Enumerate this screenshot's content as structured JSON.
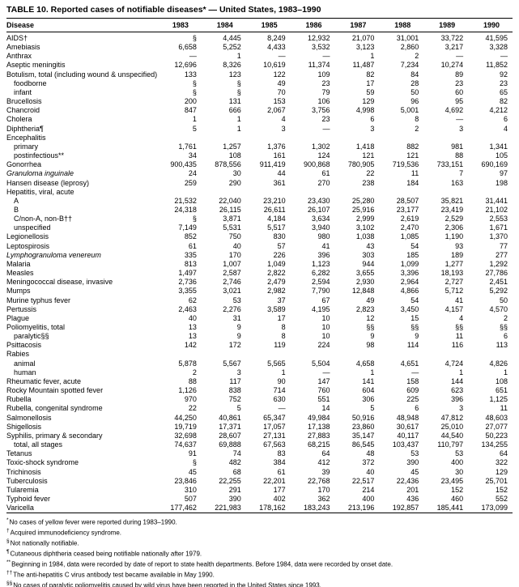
{
  "table": {
    "title": "TABLE 10. Reported cases of notifiable diseases* — United States, 1983–1990",
    "columns": [
      "Disease",
      "1983",
      "1984",
      "1985",
      "1986",
      "1987",
      "1988",
      "1989",
      "1990"
    ],
    "rows": [
      {
        "label": "AIDS†",
        "indent": 0,
        "italic": false,
        "values": [
          "§",
          "4,445",
          "8,249",
          "12,932",
          "21,070",
          "31,001",
          "33,722",
          "41,595"
        ]
      },
      {
        "label": "Amebiasis",
        "indent": 0,
        "italic": false,
        "values": [
          "6,658",
          "5,252",
          "4,433",
          "3,532",
          "3,123",
          "2,860",
          "3,217",
          "3,328"
        ]
      },
      {
        "label": "Anthrax",
        "indent": 0,
        "italic": false,
        "values": [
          "—",
          "1",
          "—",
          "—",
          "1",
          "2",
          "—",
          "—"
        ]
      },
      {
        "label": "Aseptic meningitis",
        "indent": 0,
        "italic": false,
        "values": [
          "12,696",
          "8,326",
          "10,619",
          "11,374",
          "11,487",
          "7,234",
          "10,274",
          "11,852"
        ]
      },
      {
        "label": "Botulism, total (including wound & unspecified)",
        "indent": 0,
        "italic": false,
        "values": [
          "133",
          "123",
          "122",
          "109",
          "82",
          "84",
          "89",
          "92"
        ]
      },
      {
        "label": "foodborne",
        "indent": 1,
        "italic": false,
        "values": [
          "§",
          "§",
          "49",
          "23",
          "17",
          "28",
          "23",
          "23"
        ]
      },
      {
        "label": "infant",
        "indent": 1,
        "italic": false,
        "values": [
          "§",
          "§",
          "70",
          "79",
          "59",
          "50",
          "60",
          "65"
        ]
      },
      {
        "label": "Brucellosis",
        "indent": 0,
        "italic": false,
        "values": [
          "200",
          "131",
          "153",
          "106",
          "129",
          "96",
          "95",
          "82"
        ]
      },
      {
        "label": "Chancroid",
        "indent": 0,
        "italic": false,
        "values": [
          "847",
          "666",
          "2,067",
          "3,756",
          "4,998",
          "5,001",
          "4,692",
          "4,212"
        ]
      },
      {
        "label": "Cholera",
        "indent": 0,
        "italic": false,
        "values": [
          "1",
          "1",
          "4",
          "23",
          "6",
          "8",
          "—",
          "6"
        ]
      },
      {
        "label": "Diphtheria¶",
        "indent": 0,
        "italic": false,
        "values": [
          "5",
          "1",
          "3",
          "—",
          "3",
          "2",
          "3",
          "4"
        ]
      },
      {
        "label": "Encephalitis",
        "indent": 0,
        "italic": false,
        "values": []
      },
      {
        "label": "primary",
        "indent": 1,
        "italic": false,
        "values": [
          "1,761",
          "1,257",
          "1,376",
          "1,302",
          "1,418",
          "882",
          "981",
          "1,341"
        ]
      },
      {
        "label": "postinfectious**",
        "indent": 1,
        "italic": false,
        "values": [
          "34",
          "108",
          "161",
          "124",
          "121",
          "121",
          "88",
          "105"
        ]
      },
      {
        "label": "Gonorrhea",
        "indent": 0,
        "italic": false,
        "values": [
          "900,435",
          "878,556",
          "911,419",
          "900,868",
          "780,905",
          "719,536",
          "733,151",
          "690,169"
        ]
      },
      {
        "label": "Granuloma inguinale",
        "indent": 0,
        "italic": true,
        "values": [
          "24",
          "30",
          "44",
          "61",
          "22",
          "11",
          "7",
          "97"
        ]
      },
      {
        "label": "Hansen disease (leprosy)",
        "indent": 0,
        "italic": false,
        "values": [
          "259",
          "290",
          "361",
          "270",
          "238",
          "184",
          "163",
          "198"
        ]
      },
      {
        "label": "Hepatitis, viral, acute",
        "indent": 0,
        "italic": false,
        "values": []
      },
      {
        "label": "A",
        "indent": 1,
        "italic": false,
        "values": [
          "21,532",
          "22,040",
          "23,210",
          "23,430",
          "25,280",
          "28,507",
          "35,821",
          "31,441"
        ]
      },
      {
        "label": "B",
        "indent": 1,
        "italic": false,
        "values": [
          "24,318",
          "26,115",
          "26,611",
          "26,107",
          "25,916",
          "23,177",
          "23,419",
          "21,102"
        ]
      },
      {
        "label": "C/non-A, non-B††",
        "indent": 1,
        "italic": false,
        "values": [
          "§",
          "3,871",
          "4,184",
          "3,634",
          "2,999",
          "2,619",
          "2,529",
          "2,553"
        ]
      },
      {
        "label": "unspecified",
        "indent": 1,
        "italic": false,
        "values": [
          "7,149",
          "5,531",
          "5,517",
          "3,940",
          "3,102",
          "2,470",
          "2,306",
          "1,671"
        ]
      },
      {
        "label": "Legionellosis",
        "indent": 0,
        "italic": false,
        "values": [
          "852",
          "750",
          "830",
          "980",
          "1,038",
          "1,085",
          "1,190",
          "1,370"
        ]
      },
      {
        "label": "Leptospirosis",
        "indent": 0,
        "italic": false,
        "values": [
          "61",
          "40",
          "57",
          "41",
          "43",
          "54",
          "93",
          "77"
        ]
      },
      {
        "label": "Lymphogranuloma venereum",
        "indent": 0,
        "italic": true,
        "values": [
          "335",
          "170",
          "226",
          "396",
          "303",
          "185",
          "189",
          "277"
        ]
      },
      {
        "label": "Malaria",
        "indent": 0,
        "italic": false,
        "values": [
          "813",
          "1,007",
          "1,049",
          "1,123",
          "944",
          "1,099",
          "1,277",
          "1,292"
        ]
      },
      {
        "label": "Measles",
        "indent": 0,
        "italic": false,
        "values": [
          "1,497",
          "2,587",
          "2,822",
          "6,282",
          "3,655",
          "3,396",
          "18,193",
          "27,786"
        ]
      },
      {
        "label": "Meningococcal disease, invasive",
        "indent": 0,
        "italic": false,
        "values": [
          "2,736",
          "2,746",
          "2,479",
          "2,594",
          "2,930",
          "2,964",
          "2,727",
          "2,451"
        ]
      },
      {
        "label": "Mumps",
        "indent": 0,
        "italic": false,
        "values": [
          "3,355",
          "3,021",
          "2,982",
          "7,790",
          "12,848",
          "4,866",
          "5,712",
          "5,292"
        ]
      },
      {
        "label": "Murine typhus fever",
        "indent": 0,
        "italic": false,
        "values": [
          "62",
          "53",
          "37",
          "67",
          "49",
          "54",
          "41",
          "50"
        ]
      },
      {
        "label": "Pertussis",
        "indent": 0,
        "italic": false,
        "values": [
          "2,463",
          "2,276",
          "3,589",
          "4,195",
          "2,823",
          "3,450",
          "4,157",
          "4,570"
        ]
      },
      {
        "label": "Plague",
        "indent": 0,
        "italic": false,
        "values": [
          "40",
          "31",
          "17",
          "10",
          "12",
          "15",
          "4",
          "2"
        ]
      },
      {
        "label": "Poliomyelitis, total",
        "indent": 0,
        "italic": false,
        "values": [
          "13",
          "9",
          "8",
          "10",
          "§§",
          "§§",
          "§§",
          "§§"
        ]
      },
      {
        "label": "paralytic§§",
        "indent": 1,
        "italic": false,
        "values": [
          "13",
          "9",
          "8",
          "10",
          "9",
          "9",
          "11",
          "6"
        ]
      },
      {
        "label": "Psittacosis",
        "indent": 0,
        "italic": false,
        "values": [
          "142",
          "172",
          "119",
          "224",
          "98",
          "114",
          "116",
          "113"
        ]
      },
      {
        "label": "Rabies",
        "indent": 0,
        "italic": false,
        "values": []
      },
      {
        "label": "animal",
        "indent": 1,
        "italic": false,
        "values": [
          "5,878",
          "5,567",
          "5,565",
          "5,504",
          "4,658",
          "4,651",
          "4,724",
          "4,826"
        ]
      },
      {
        "label": "human",
        "indent": 1,
        "italic": false,
        "values": [
          "2",
          "3",
          "1",
          "—",
          "1",
          "—",
          "1",
          "1"
        ]
      },
      {
        "label": "Rheumatic fever, acute",
        "indent": 0,
        "italic": false,
        "values": [
          "88",
          "117",
          "90",
          "147",
          "141",
          "158",
          "144",
          "108"
        ]
      },
      {
        "label": "Rocky Mountain spotted fever",
        "indent": 0,
        "italic": false,
        "values": [
          "1,126",
          "838",
          "714",
          "760",
          "604",
          "609",
          "623",
          "651"
        ]
      },
      {
        "label": "Rubella",
        "indent": 0,
        "italic": false,
        "values": [
          "970",
          "752",
          "630",
          "551",
          "306",
          "225",
          "396",
          "1,125"
        ]
      },
      {
        "label": "Rubella, congenital syndrome",
        "indent": 0,
        "italic": false,
        "values": [
          "22",
          "5",
          "—",
          "14",
          "5",
          "6",
          "3",
          "11"
        ]
      },
      {
        "label": "Salmonellosis",
        "indent": 0,
        "italic": false,
        "values": [
          "44,250",
          "40,861",
          "65,347",
          "49,984",
          "50,916",
          "48,948",
          "47,812",
          "48,603"
        ]
      },
      {
        "label": "Shigellosis",
        "indent": 0,
        "italic": false,
        "values": [
          "19,719",
          "17,371",
          "17,057",
          "17,138",
          "23,860",
          "30,617",
          "25,010",
          "27,077"
        ]
      },
      {
        "label": "Syphilis, primary & secondary",
        "indent": 0,
        "italic": false,
        "values": [
          "32,698",
          "28,607",
          "27,131",
          "27,883",
          "35,147",
          "40,117",
          "44,540",
          "50,223"
        ]
      },
      {
        "label": "total, all stages",
        "indent": 1,
        "italic": false,
        "values": [
          "74,637",
          "69,888",
          "67,563",
          "68,215",
          "86,545",
          "103,437",
          "110,797",
          "134,255"
        ]
      },
      {
        "label": "Tetanus",
        "indent": 0,
        "italic": false,
        "values": [
          "91",
          "74",
          "83",
          "64",
          "48",
          "53",
          "53",
          "64"
        ]
      },
      {
        "label": "Toxic-shock syndrome",
        "indent": 0,
        "italic": false,
        "values": [
          "§",
          "482",
          "384",
          "412",
          "372",
          "390",
          "400",
          "322"
        ]
      },
      {
        "label": "Trichinosis",
        "indent": 0,
        "italic": false,
        "values": [
          "45",
          "68",
          "61",
          "39",
          "40",
          "45",
          "30",
          "129"
        ]
      },
      {
        "label": "Tuberculosis",
        "indent": 0,
        "italic": false,
        "values": [
          "23,846",
          "22,255",
          "22,201",
          "22,768",
          "22,517",
          "22,436",
          "23,495",
          "25,701"
        ]
      },
      {
        "label": "Tularemia",
        "indent": 0,
        "italic": false,
        "values": [
          "310",
          "291",
          "177",
          "170",
          "214",
          "201",
          "152",
          "152"
        ]
      },
      {
        "label": "Typhoid fever",
        "indent": 0,
        "italic": false,
        "values": [
          "507",
          "390",
          "402",
          "362",
          "400",
          "436",
          "460",
          "552"
        ]
      },
      {
        "label": "Varicella",
        "indent": 0,
        "italic": false,
        "values": [
          "177,462",
          "221,983",
          "178,162",
          "183,243",
          "213,196",
          "192,857",
          "185,441",
          "173,099"
        ]
      }
    ],
    "footnotes": [
      {
        "sym": "*",
        "text": "No cases of yellow fever were reported during 1983–1990."
      },
      {
        "sym": "†",
        "text": "Acquired immunodeficiency syndrome."
      },
      {
        "sym": "§",
        "text": "Not nationally notifiable."
      },
      {
        "sym": "¶",
        "text": "Cutaneous diphtheria ceased being notifiable nationally after 1979."
      },
      {
        "sym": "**",
        "text": "Beginning in 1984, data were recorded by date of report to state health departments. Before 1984, data were recorded by onset date."
      },
      {
        "sym": "††",
        "text": "The anti-hepatitis C virus antibody test became available in May 1990."
      },
      {
        "sym": "§§",
        "text": "No cases of paralytic poliomyelitis caused by wild virus have been reported in the United States since 1993."
      }
    ]
  }
}
